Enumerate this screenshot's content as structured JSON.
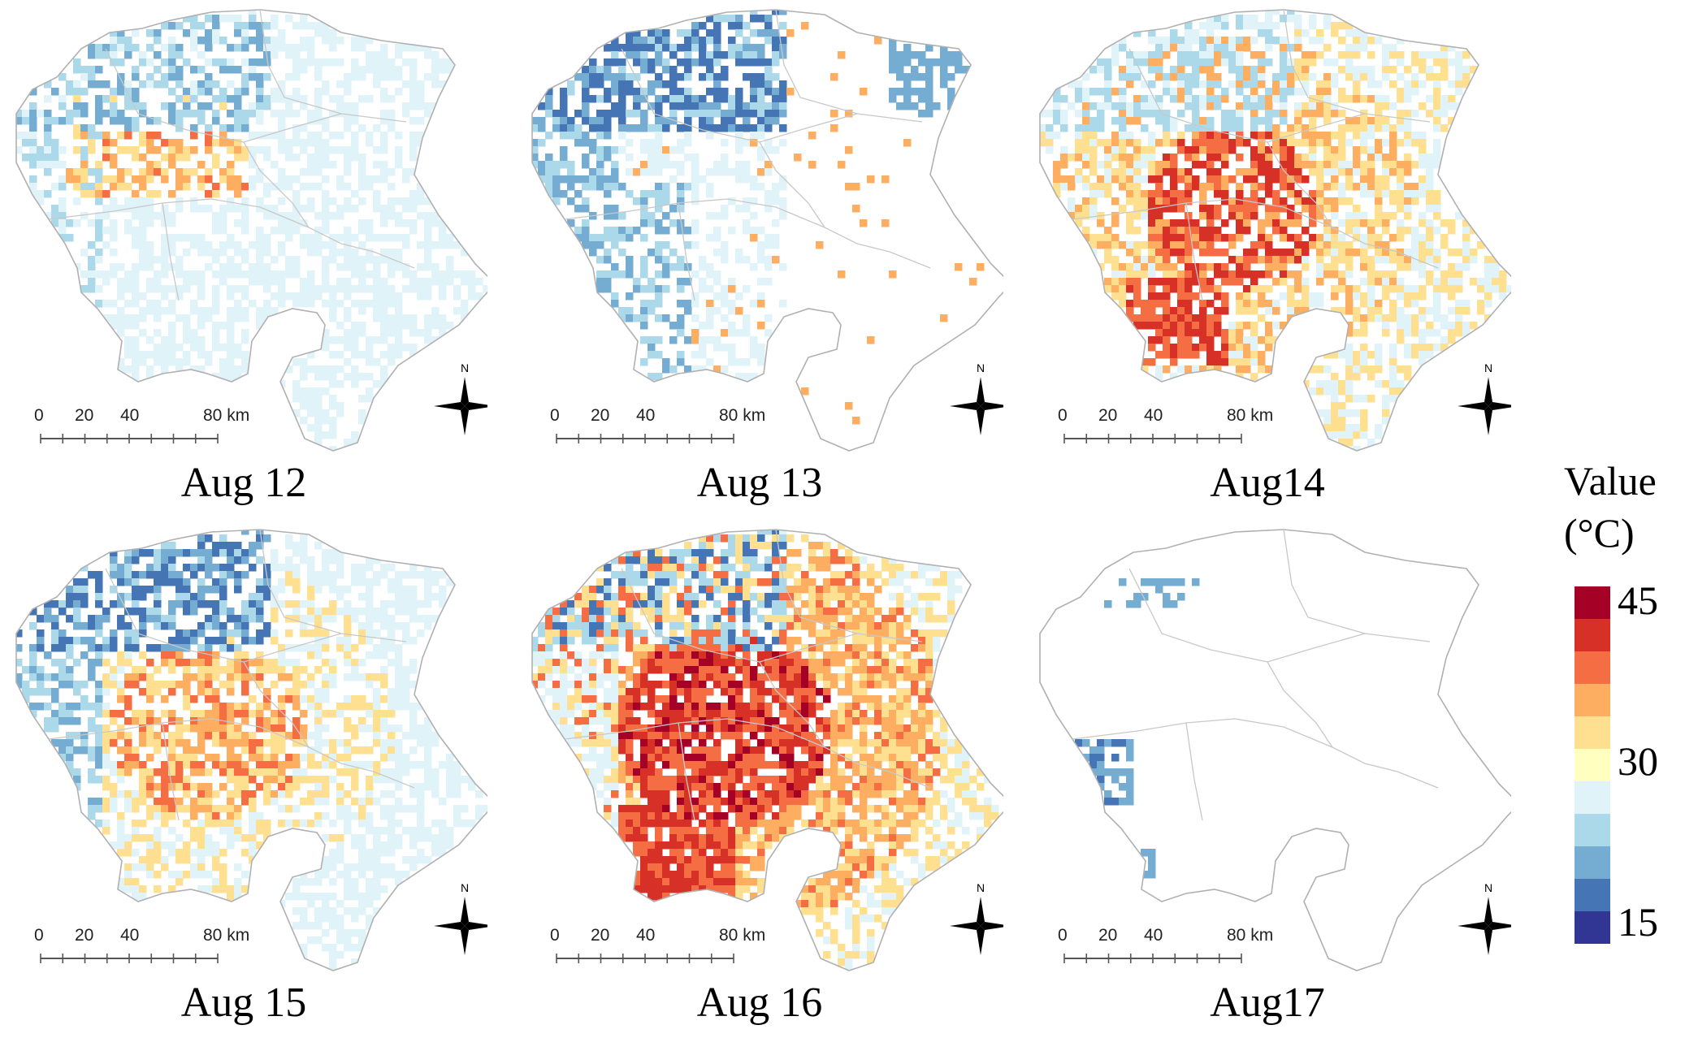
{
  "panels": [
    {
      "date": "Aug 12",
      "profile": "mild-warm"
    },
    {
      "date": "Aug 13",
      "profile": "cool"
    },
    {
      "date": "Aug14",
      "profile": "hot"
    },
    {
      "date": "Aug 15",
      "profile": "warm"
    },
    {
      "date": "Aug 16",
      "profile": "very-hot"
    },
    {
      "date": "Aug17",
      "profile": "sparse"
    }
  ],
  "scale_bar": {
    "ticks": [
      "0",
      "20",
      "40",
      "80 km"
    ]
  },
  "north_arrow": {
    "label": "N",
    "icon": "compass-rose-icon"
  },
  "legend": {
    "title_line1": "Value",
    "title_line2": "(°C)",
    "ticks": [
      "45",
      "30",
      "15"
    ],
    "colors": [
      "#a50026",
      "#d73027",
      "#f46d43",
      "#fdae61",
      "#fee090",
      "#ffffbf",
      "#e0f3f8",
      "#abd9e9",
      "#74add1",
      "#4575b4",
      "#313695"
    ],
    "unit": "°C"
  }
}
